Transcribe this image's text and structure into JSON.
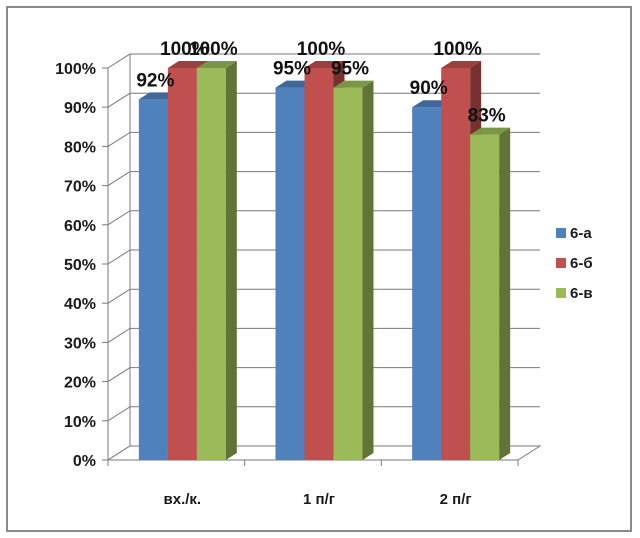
{
  "chart_data": {
    "type": "bar",
    "categories": [
      "вх./к.",
      "1 п/г",
      "2 п/г"
    ],
    "series": [
      {
        "name": "6-а",
        "color": "#4f81bd",
        "values": [
          92,
          95,
          90
        ],
        "labels": [
          "92%",
          "95%",
          "90%"
        ]
      },
      {
        "name": "6-б",
        "color": "#c0504d",
        "values": [
          100,
          100,
          100
        ],
        "labels": [
          "100%",
          "100%",
          "100%"
        ]
      },
      {
        "name": "6-в",
        "color": "#9bbb59",
        "values": [
          100,
          95,
          83
        ],
        "labels": [
          "100%",
          "95%",
          "83%"
        ]
      }
    ],
    "yticks": [
      "0%",
      "10%",
      "20%",
      "30%",
      "40%",
      "50%",
      "60%",
      "70%",
      "80%",
      "90%",
      "100%"
    ],
    "ylim": [
      0,
      100
    ],
    "grid": true,
    "legend_position": "right",
    "style": "3d-clustered-column"
  }
}
